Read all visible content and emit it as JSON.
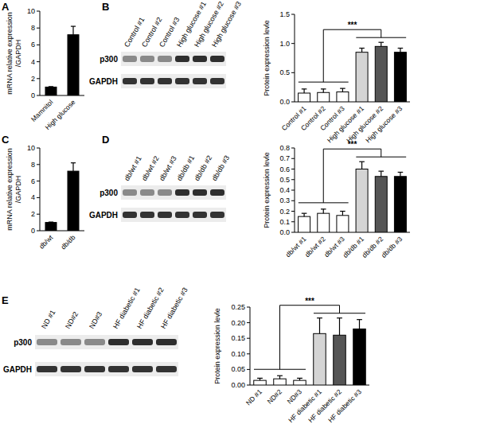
{
  "chart_data": [
    {
      "type": "bar",
      "title": "A",
      "y_label": [
        "mRNA relative expression",
        "/GAPDH"
      ],
      "categories": [
        "Mamnitol",
        "High glucose"
      ],
      "values": [
        1,
        7.2
      ],
      "errors": [
        0.05,
        1.0
      ],
      "colors": [
        "#000000",
        "#000000"
      ],
      "ylim": [
        0,
        10
      ],
      "yticks": [
        0,
        2,
        4,
        6,
        8,
        10
      ]
    },
    {
      "type": "bar",
      "title": "B",
      "y_label": [
        "Protein expression levle"
      ],
      "categories": [
        "Control #1",
        "Control #2",
        "Control #3",
        "High glucose #1",
        "High glucose #2",
        "High glucose #3"
      ],
      "values": [
        0.15,
        0.16,
        0.17,
        0.85,
        0.95,
        0.85
      ],
      "errors": [
        0.07,
        0.06,
        0.06,
        0.07,
        0.07,
        0.07
      ],
      "colors": [
        "#ffffff",
        "#ffffff",
        "#ffffff",
        "#d4d4d4",
        "#555555",
        "#000000"
      ],
      "ylim": [
        0,
        1.5
      ],
      "yticks": [
        {
          "value": 0,
          "label": "0.0"
        },
        {
          "value": 0.5,
          "label": "0.5"
        },
        {
          "value": 1,
          "label": "1.0"
        },
        {
          "value": 1.5,
          "label": "1.5"
        }
      ],
      "annotation": "***"
    },
    {
      "type": "bar",
      "title": "C",
      "y_label": [
        "mRNA relative expression",
        "/GAPDH"
      ],
      "categories": [
        "db/wt",
        "db/db"
      ],
      "values": [
        1,
        7.2
      ],
      "errors": [
        0.05,
        1.0
      ],
      "colors": [
        "#000000",
        "#000000"
      ],
      "ylim": [
        0,
        10
      ],
      "yticks": [
        0,
        2,
        4,
        6,
        8,
        10
      ]
    },
    {
      "type": "bar",
      "title": "D",
      "y_label": [
        "Protein expression levle"
      ],
      "categories": [
        "db/wt #1",
        "db/wt #2",
        "db/wt #3",
        "db/db #1",
        "db/db #2",
        "db/db #3"
      ],
      "values": [
        0.15,
        0.18,
        0.16,
        0.6,
        0.53,
        0.53
      ],
      "errors": [
        0.03,
        0.04,
        0.04,
        0.07,
        0.05,
        0.04
      ],
      "colors": [
        "#ffffff",
        "#ffffff",
        "#ffffff",
        "#d4d4d4",
        "#555555",
        "#000000"
      ],
      "ylim": [
        0,
        0.8
      ],
      "yticks": [
        {
          "value": 0,
          "label": "0.0"
        },
        {
          "value": 0.1,
          "label": "0.1"
        },
        {
          "value": 0.2,
          "label": "0.2"
        },
        {
          "value": 0.3,
          "label": "0.3"
        },
        {
          "value": 0.4,
          "label": "0.4"
        },
        {
          "value": 0.5,
          "label": "0.5"
        },
        {
          "value": 0.6,
          "label": "0.6"
        },
        {
          "value": 0.7,
          "label": "0.7"
        },
        {
          "value": 0.8,
          "label": "0.8"
        }
      ],
      "annotation": "***"
    },
    {
      "type": "bar",
      "title": "E",
      "y_label": [
        "Protein expression levle"
      ],
      "categories": [
        "ND #1",
        "ND#2",
        "ND#3",
        "HF diabetic #1",
        "HF diabetic #2",
        "HF diabetic #3"
      ],
      "values": [
        0.015,
        0.02,
        0.015,
        0.165,
        0.16,
        0.18
      ],
      "errors": [
        0.007,
        0.01,
        0.007,
        0.05,
        0.055,
        0.03
      ],
      "colors": [
        "#ffffff",
        "#ffffff",
        "#ffffff",
        "#d4d4d4",
        "#555555",
        "#000000"
      ],
      "ylim": [
        0,
        0.25
      ],
      "yticks": [
        {
          "value": 0,
          "label": "0.00"
        },
        {
          "value": 0.05,
          "label": "0.05"
        },
        {
          "value": 0.1,
          "label": "0.10"
        },
        {
          "value": 0.15,
          "label": "0.15"
        },
        {
          "value": 0.2,
          "label": "0.20"
        },
        {
          "value": 0.25,
          "label": "0.25"
        }
      ],
      "annotation": "***"
    }
  ],
  "blots": [
    {
      "lanes": [
        "Control #1",
        "Control #2",
        "Control #3",
        "High glucose #1",
        "High glucose #2",
        "High glucose #3"
      ],
      "rows": [
        "p300",
        "GAPDH"
      ]
    },
    {
      "lanes": [
        "db/wt #1",
        "db/wt #2",
        "db/wt #3",
        "db/db #1",
        "db/db #2",
        "db/db #3"
      ],
      "rows": [
        "p300",
        "GAPDH"
      ]
    },
    {
      "lanes": [
        "ND #1",
        "ND#2",
        "ND#3",
        "HF diabetic #1",
        "HF diabetic #2",
        "HF diabetic #3"
      ],
      "rows": [
        "p300",
        "GAPDH"
      ]
    }
  ]
}
